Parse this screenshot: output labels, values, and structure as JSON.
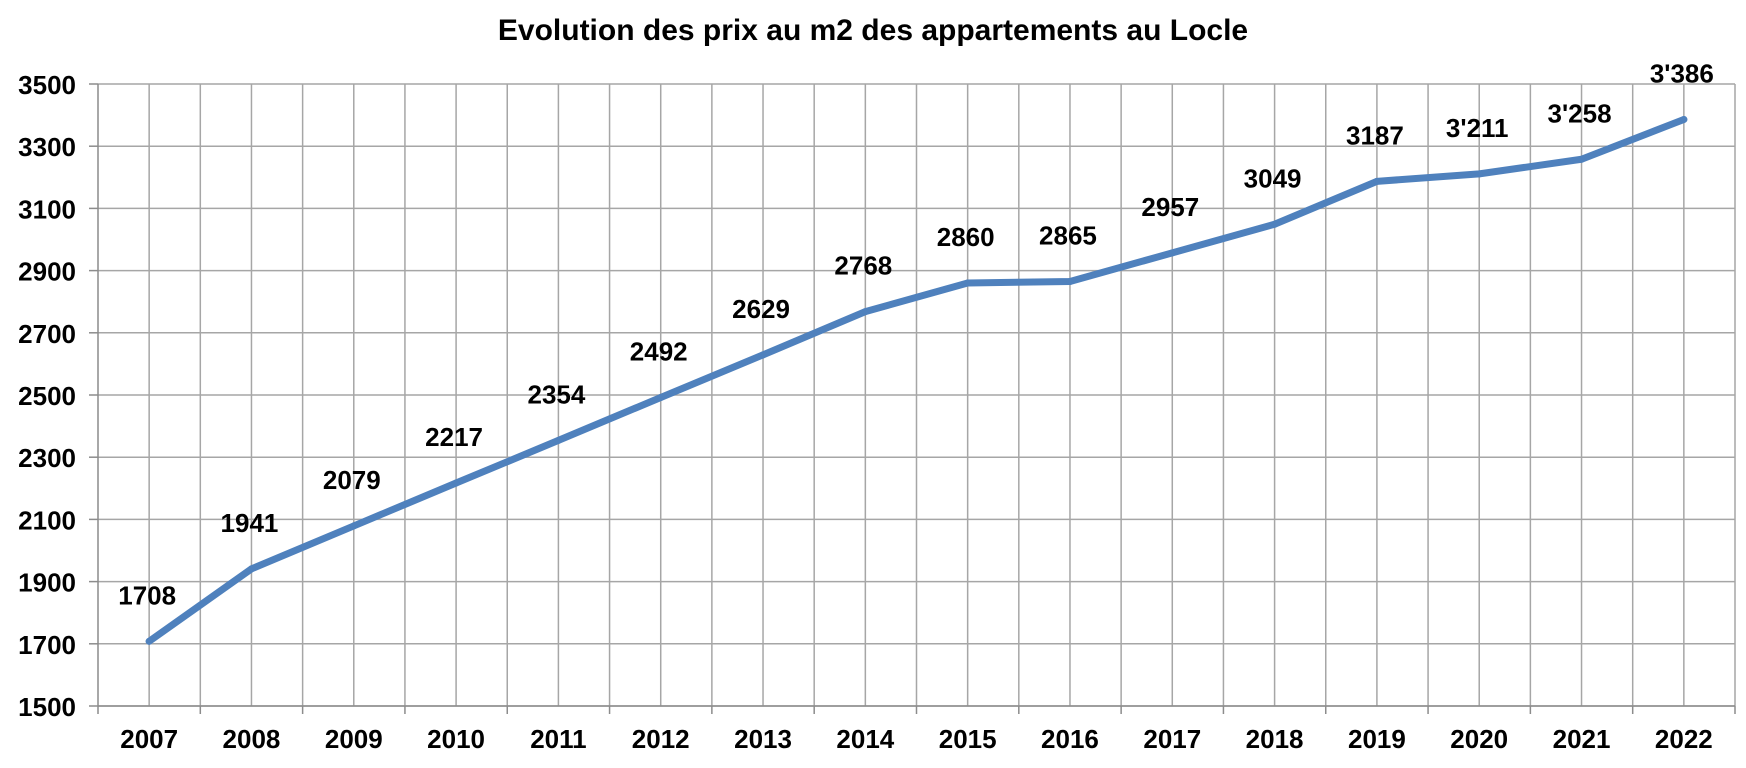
{
  "chart_data": {
    "type": "line",
    "title": "Evolution des prix au m2 des appartements au Locle",
    "xlabel": "",
    "ylabel": "",
    "categories": [
      "2007",
      "2008",
      "2009",
      "2010",
      "2011",
      "2012",
      "2013",
      "2014",
      "2015",
      "2016",
      "2017",
      "2018",
      "2019",
      "2020",
      "2021",
      "2022"
    ],
    "series": [
      {
        "values": [
          1708,
          1941,
          2079,
          2217,
          2354,
          2492,
          2629,
          2768,
          2860,
          2865,
          2957,
          3049,
          3187,
          3211,
          3258,
          3386
        ],
        "data_labels": [
          "1708",
          "1941",
          "2079",
          "2217",
          "2354",
          "2492",
          "2629",
          "2768",
          "2860",
          "2865",
          "2957",
          "3049",
          "3187",
          "3'211",
          "3'258",
          "3'386"
        ],
        "color": "#4F81BD"
      }
    ],
    "ylim": [
      1500,
      3500
    ],
    "y_ticks": [
      1500,
      1700,
      1900,
      2100,
      2300,
      2500,
      2700,
      2900,
      3100,
      3300,
      3500
    ],
    "grid": true,
    "grid_color": "#A6A6A6",
    "legend": "none"
  }
}
